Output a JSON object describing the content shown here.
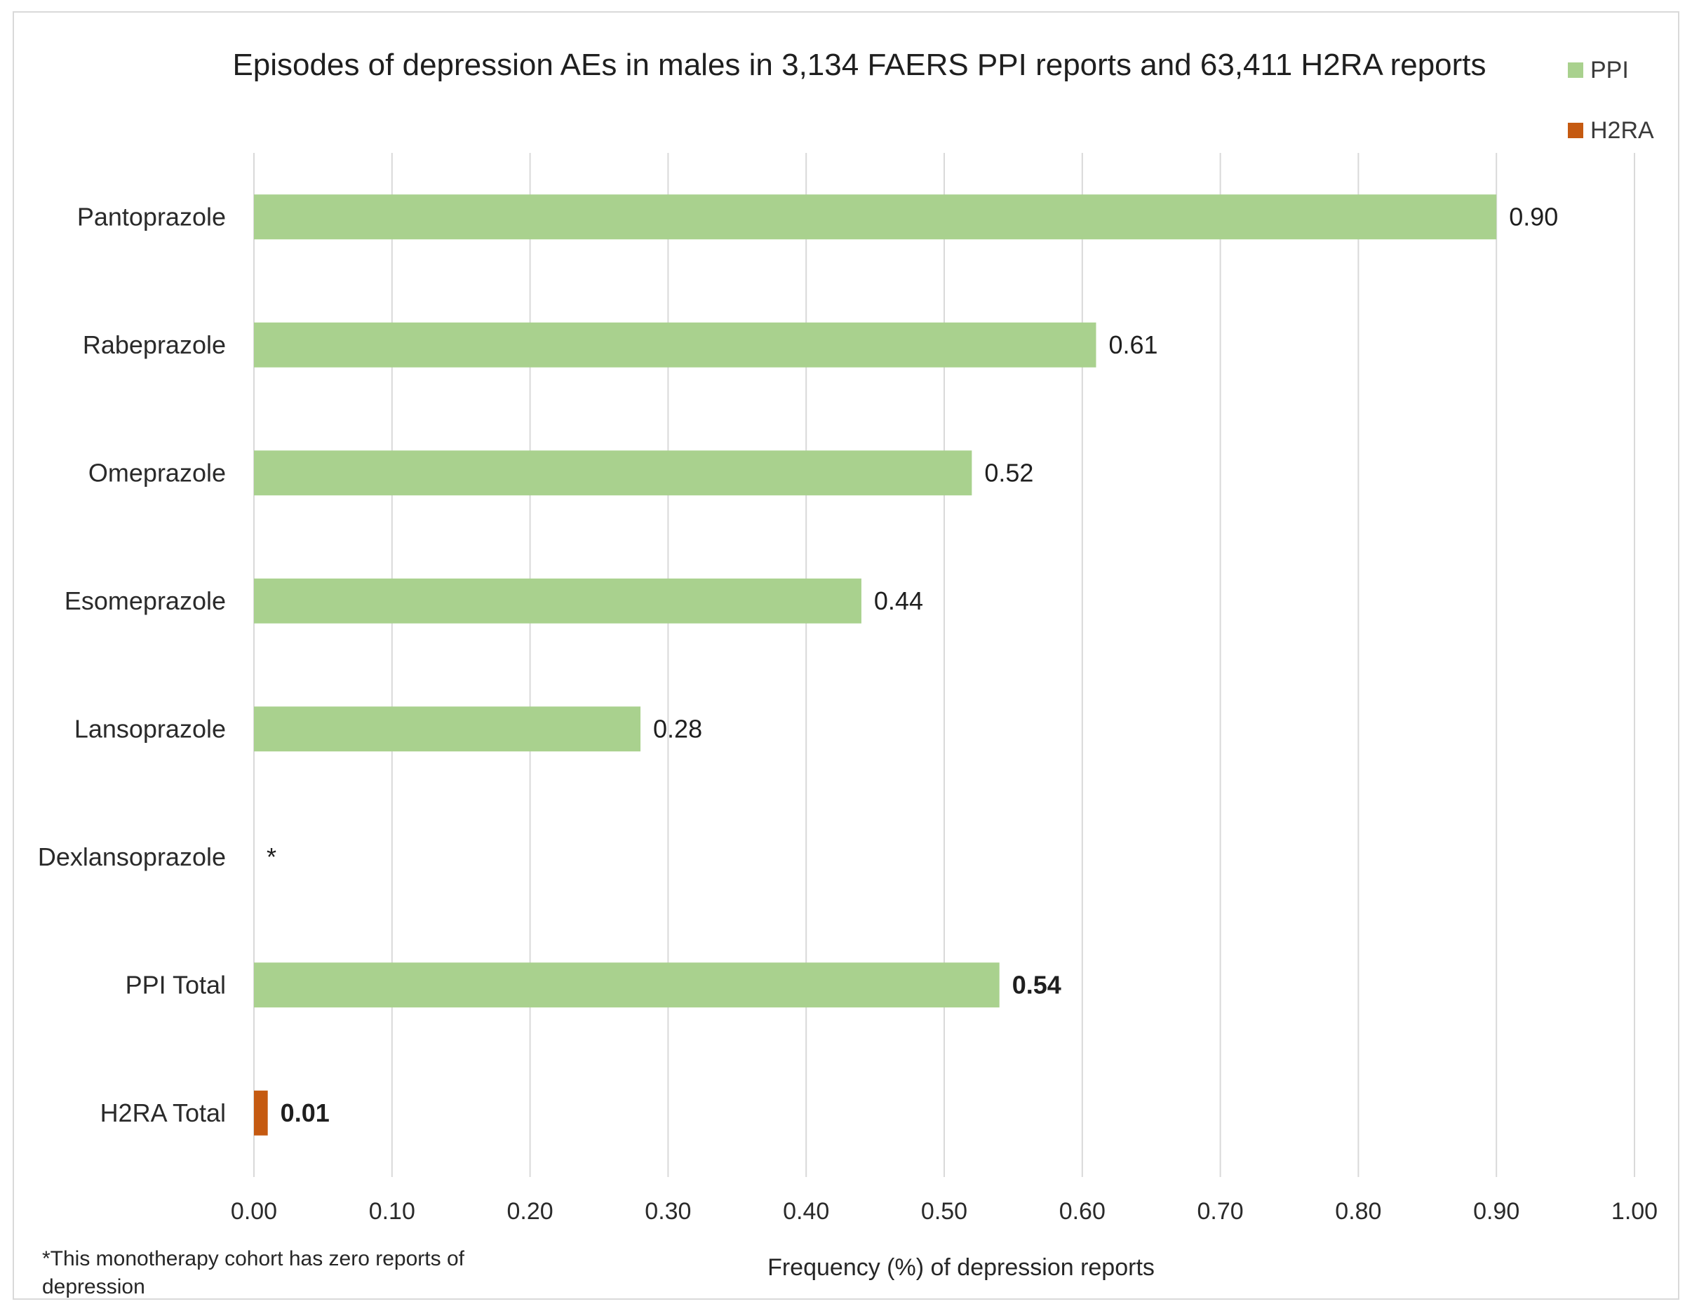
{
  "chart_data": {
    "type": "bar",
    "orientation": "horizontal",
    "title": "Episodes of depression AEs in males in 3,134 FAERS PPI reports and 63,411 H2RA reports",
    "xlabel": "Frequency (%) of depression reports",
    "ylabel": "",
    "xlim": [
      0,
      1
    ],
    "x_ticks": [
      "0.00",
      "0.10",
      "0.20",
      "0.30",
      "0.40",
      "0.50",
      "0.60",
      "0.70",
      "0.80",
      "0.90",
      "1.00"
    ],
    "grid": "vertical",
    "legend_position": "top-right",
    "legend": [
      {
        "name": "PPI",
        "color": "#a9d18e"
      },
      {
        "name": "H2RA",
        "color": "#c55a11"
      }
    ],
    "categories": [
      "Pantoprazole",
      "Rabeprazole",
      "Omeprazole",
      "Esomeprazole",
      "Lansoprazole",
      "Dexlansoprazole",
      "PPI Total",
      "H2RA Total"
    ],
    "bars": [
      {
        "category": "Pantoprazole",
        "value": 0.9,
        "label": "0.90",
        "series": "PPI",
        "bold": false
      },
      {
        "category": "Rabeprazole",
        "value": 0.61,
        "label": "0.61",
        "series": "PPI",
        "bold": false
      },
      {
        "category": "Omeprazole",
        "value": 0.52,
        "label": "0.52",
        "series": "PPI",
        "bold": false
      },
      {
        "category": "Esomeprazole",
        "value": 0.44,
        "label": "0.44",
        "series": "PPI",
        "bold": false
      },
      {
        "category": "Lansoprazole",
        "value": 0.28,
        "label": "0.28",
        "series": "PPI",
        "bold": false
      },
      {
        "category": "Dexlansoprazole",
        "value": 0,
        "label": "*",
        "series": "PPI",
        "bold": false
      },
      {
        "category": "PPI Total",
        "value": 0.54,
        "label": "0.54",
        "series": "PPI",
        "bold": true
      },
      {
        "category": "H2RA Total",
        "value": 0.01,
        "label": "0.01",
        "series": "H2RA",
        "bold": true
      }
    ],
    "footnote": "*This monotherapy cohort has zero reports of depression"
  }
}
